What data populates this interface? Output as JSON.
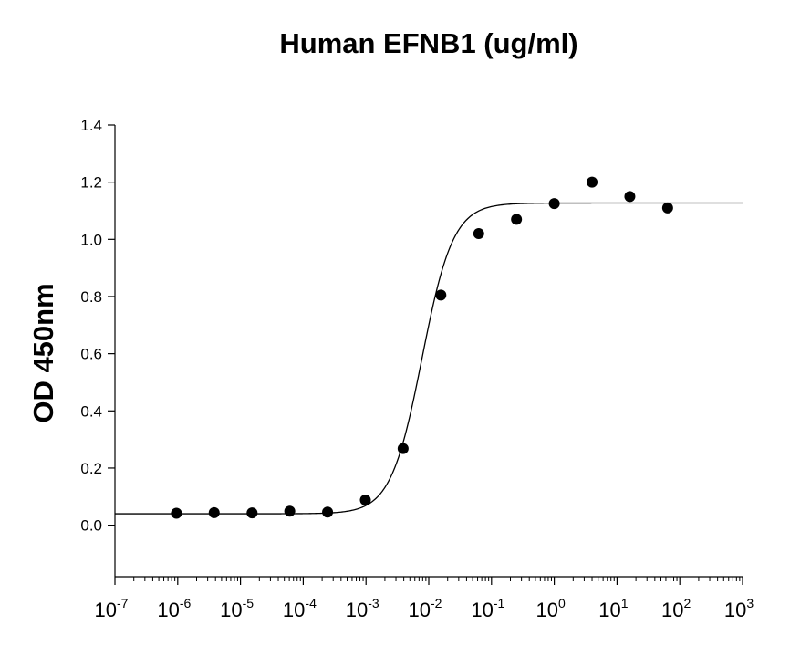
{
  "chart_data": {
    "type": "scatter",
    "title": "Human EFNB1 (ug/ml)",
    "xlabel": "",
    "ylabel": "OD 450nm",
    "xscale": "log",
    "xlim": [
      1e-07,
      1000
    ],
    "ylim": [
      -0.18,
      1.4
    ],
    "xtick_base": "10",
    "xtick_exponents": [
      "-7",
      "-6",
      "-5",
      "-4",
      "-3",
      "-2",
      "-1",
      "0",
      "1",
      "2",
      "3"
    ],
    "yticks": [
      "0.0",
      "0.2",
      "0.4",
      "0.6",
      "0.8",
      "1.0",
      "1.2",
      "1.4"
    ],
    "grid": false,
    "legend": "none",
    "series": [
      {
        "values": [
          {
            "x": 9.54e-07,
            "y": 0.042
          },
          {
            "x": 3.81e-06,
            "y": 0.044
          },
          {
            "x": 1.53e-05,
            "y": 0.043
          },
          {
            "x": 6.1e-05,
            "y": 0.049
          },
          {
            "x": 0.000244,
            "y": 0.046
          },
          {
            "x": 0.000977,
            "y": 0.088
          },
          {
            "x": 0.0039,
            "y": 0.268
          },
          {
            "x": 0.0156,
            "y": 0.805
          },
          {
            "x": 0.0625,
            "y": 1.02
          },
          {
            "x": 0.25,
            "y": 1.07
          },
          {
            "x": 1,
            "y": 1.125
          },
          {
            "x": 4,
            "y": 1.2
          },
          {
            "x": 16,
            "y": 1.15
          },
          {
            "x": 64,
            "y": 1.11
          }
        ]
      }
    ],
    "fit": {
      "type": "4-parameter logistic",
      "bottom": 0.04,
      "top": 1.127,
      "ec50": 0.0078,
      "hill": 1.75
    },
    "colors": {
      "points": "#000000",
      "curve": "#000000",
      "axes": "#000000"
    }
  }
}
